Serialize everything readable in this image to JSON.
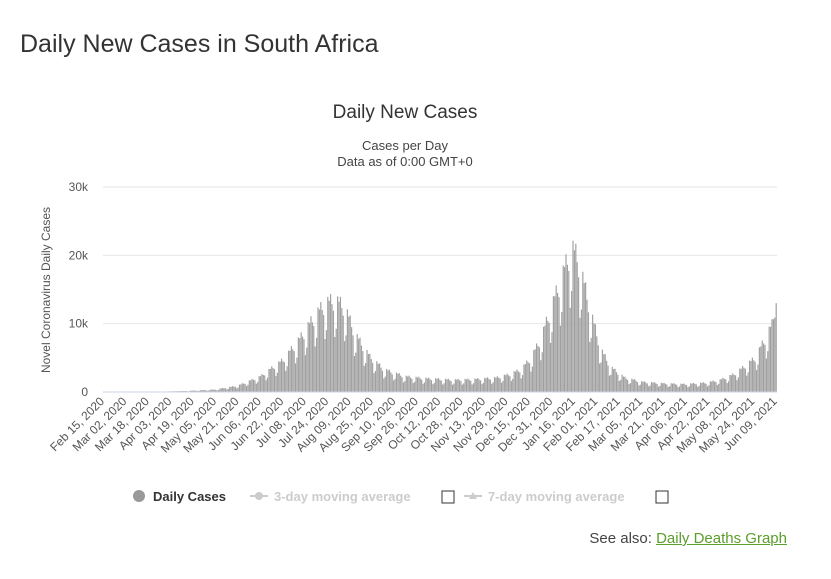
{
  "page": {
    "title": "Daily New Cases in South Africa",
    "see_also_label": "See also:",
    "see_also_link": "Daily Deaths Graph"
  },
  "colors": {
    "bar": "#a0a0a0",
    "grid": "#e6e6e6",
    "link": "#5a9e2b",
    "legend_inactive": "#cccccc"
  },
  "chart_data": {
    "type": "bar",
    "title": "Daily New Cases",
    "subtitle_line1": "Cases per Day",
    "subtitle_line2": "Data as of 0:00 GMT+0",
    "ylabel": "Novel Coronavirus Daily Cases",
    "ylim": [
      0,
      30000
    ],
    "yticks": [
      0,
      10000,
      20000,
      30000
    ],
    "ytick_labels": [
      "0",
      "10k",
      "20k",
      "30k"
    ],
    "x_range": [
      "Feb 15, 2020",
      "Jun 17, 2021"
    ],
    "xtick_labels": [
      "Feb 15, 2020",
      "Mar 02, 2020",
      "Mar 18, 2020",
      "Apr 03, 2020",
      "Apr 19, 2020",
      "May 05, 2020",
      "May 21, 2020",
      "Jun 06, 2020",
      "Jun 22, 2020",
      "Jul 08, 2020",
      "Jul 24, 2020",
      "Aug 09, 2020",
      "Aug 25, 2020",
      "Sep 10, 2020",
      "Sep 26, 2020",
      "Oct 12, 2020",
      "Oct 28, 2020",
      "Nov 13, 2020",
      "Nov 29, 2020",
      "Dec 15, 2020",
      "Dec 31, 2020",
      "Jan 16, 2021",
      "Feb 01, 2021",
      "Feb 17, 2021",
      "Mar 05, 2021",
      "Mar 21, 2021",
      "Apr 06, 2021",
      "Apr 22, 2021",
      "May 08, 2021",
      "May 24, 2021",
      "Jun 09, 2021"
    ],
    "series_name": "Daily Cases",
    "trend_knots": [
      [
        0,
        0
      ],
      [
        20,
        10
      ],
      [
        40,
        60
      ],
      [
        60,
        150
      ],
      [
        80,
        350
      ],
      [
        96,
        900
      ],
      [
        112,
        2200
      ],
      [
        128,
        4500
      ],
      [
        140,
        7500
      ],
      [
        150,
        10500
      ],
      [
        158,
        12500
      ],
      [
        165,
        13000
      ],
      [
        172,
        12000
      ],
      [
        180,
        8000
      ],
      [
        190,
        5000
      ],
      [
        200,
        3200
      ],
      [
        215,
        2200
      ],
      [
        230,
        1900
      ],
      [
        250,
        1700
      ],
      [
        265,
        1800
      ],
      [
        280,
        2000
      ],
      [
        290,
        2500
      ],
      [
        298,
        3200
      ],
      [
        305,
        4800
      ],
      [
        312,
        7500
      ],
      [
        318,
        11000
      ],
      [
        324,
        14500
      ],
      [
        330,
        18000
      ],
      [
        334,
        20500
      ],
      [
        338,
        19000
      ],
      [
        342,
        16000
      ],
      [
        348,
        11000
      ],
      [
        355,
        6000
      ],
      [
        362,
        3500
      ],
      [
        372,
        2000
      ],
      [
        385,
        1400
      ],
      [
        400,
        1200
      ],
      [
        415,
        1100
      ],
      [
        430,
        1300
      ],
      [
        440,
        1700
      ],
      [
        450,
        2500
      ],
      [
        458,
        3700
      ],
      [
        465,
        4800
      ],
      [
        472,
        7500
      ],
      [
        477,
        9500
      ],
      [
        480,
        13000
      ]
    ],
    "legend": [
      {
        "label": "Daily Cases",
        "active": true
      },
      {
        "label": "3-day moving average",
        "active": false
      },
      {
        "label": "7-day moving average",
        "active": false
      }
    ]
  }
}
